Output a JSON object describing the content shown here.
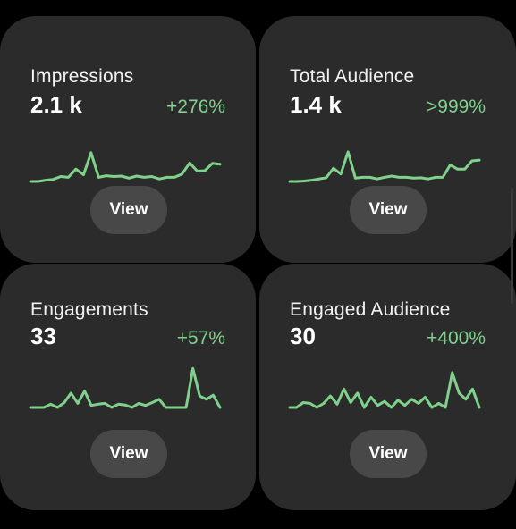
{
  "colors": {
    "background": "#000000",
    "card": "#2b2b2b",
    "button": "#484848",
    "accent_green": "#7fd18b",
    "text": "#f2f2f2"
  },
  "cards": [
    {
      "title": "Impressions",
      "value": "2.1 k",
      "delta": "+276%",
      "button_label": "View",
      "trend": [
        0.0,
        0.0,
        0.03,
        0.05,
        0.12,
        0.1,
        0.3,
        0.16,
        0.7,
        0.1,
        0.14,
        0.12,
        0.13,
        0.08,
        0.13,
        0.1,
        0.12,
        0.06,
        0.1,
        0.1,
        0.18,
        0.45,
        0.25,
        0.26,
        0.44,
        0.42
      ]
    },
    {
      "title": "Total Audience",
      "value": "1.4 k",
      "delta": ">999%",
      "button_label": "View",
      "trend": [
        0.0,
        0.0,
        0.01,
        0.03,
        0.06,
        0.09,
        0.32,
        0.18,
        0.72,
        0.08,
        0.1,
        0.1,
        0.06,
        0.1,
        0.13,
        0.1,
        0.1,
        0.08,
        0.09,
        0.06,
        0.1,
        0.1,
        0.4,
        0.3,
        0.3,
        0.5,
        0.52
      ]
    },
    {
      "title": "Engagements",
      "value": "33",
      "delta": "+57%",
      "button_label": "View",
      "trend": [
        0.0,
        0.0,
        0.0,
        0.08,
        0.0,
        0.12,
        0.35,
        0.1,
        0.4,
        0.05,
        0.08,
        0.1,
        0.0,
        0.08,
        0.06,
        0.0,
        0.1,
        0.05,
        0.12,
        0.2,
        0.0,
        0.0,
        0.0,
        0.0,
        0.95,
        0.28,
        0.2,
        0.3,
        0.0
      ]
    },
    {
      "title": "Engaged Audience",
      "value": "30",
      "delta": "+400%",
      "button_label": "View",
      "trend": [
        0.0,
        0.0,
        0.12,
        0.1,
        0.0,
        0.1,
        0.28,
        0.08,
        0.45,
        0.12,
        0.35,
        0.0,
        0.25,
        0.05,
        0.15,
        0.0,
        0.18,
        0.05,
        0.2,
        0.1,
        0.25,
        0.0,
        0.1,
        0.0,
        0.85,
        0.35,
        0.2,
        0.45,
        0.0
      ]
    }
  ]
}
